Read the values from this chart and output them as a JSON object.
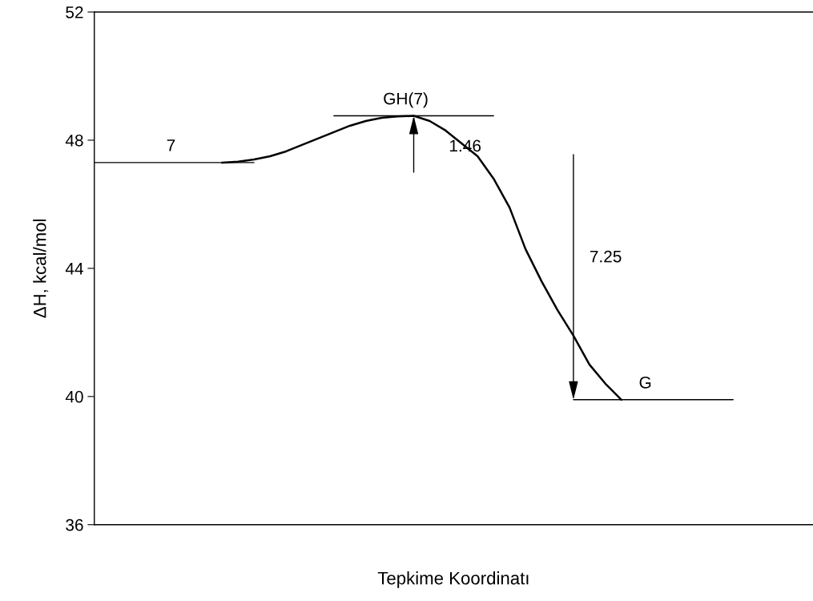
{
  "chart_data": {
    "type": "line",
    "xlabel": "Tepkime Koordinatı",
    "ylabel": "ΔH, kcal/mol",
    "categories": [
      null,
      null,
      null,
      null,
      null,
      null,
      null,
      null,
      null,
      null,
      null,
      null,
      null,
      null,
      null,
      null,
      null,
      null,
      null,
      null,
      null,
      null,
      null,
      null,
      null,
      null,
      null,
      null,
      null,
      null,
      null,
      null,
      null,
      null,
      null,
      null,
      null,
      null,
      null,
      null,
      null,
      null,
      null,
      null,
      null,
      null
    ],
    "series": [
      {
        "color": "#000000",
        "values": [
          null,
          null,
          null,
          null,
          null,
          null,
          null,
          null,
          47.3,
          47.33,
          47.4,
          47.5,
          47.65,
          47.85,
          48.05,
          48.25,
          48.45,
          48.6,
          48.7,
          48.74,
          48.76,
          48.6,
          48.3,
          47.9,
          47.5,
          46.8,
          45.9,
          44.6,
          43.6,
          42.7,
          41.9,
          41.0,
          40.4,
          39.9,
          null,
          null,
          null,
          null,
          null,
          null,
          null,
          null,
          null,
          null,
          null,
          null
        ]
      },
      {
        "name": "7",
        "color": "#000000",
        "values": [
          47.3,
          47.3,
          47.3,
          47.3,
          47.3,
          47.3,
          47.3,
          47.3,
          47.3,
          47.3,
          47.3,
          null,
          null,
          null,
          null,
          null,
          null,
          null,
          null,
          null,
          null,
          null,
          null,
          null,
          null,
          null,
          null,
          null,
          null,
          null,
          null,
          null,
          null,
          null,
          null,
          null,
          null,
          null,
          null,
          null,
          null,
          null,
          null,
          null,
          null,
          null
        ]
      },
      {
        "name": "GH(7)",
        "color": "#000000",
        "values": [
          null,
          null,
          null,
          null,
          null,
          null,
          null,
          null,
          null,
          null,
          null,
          null,
          null,
          null,
          null,
          48.76,
          48.76,
          48.76,
          48.76,
          48.76,
          48.76,
          48.76,
          48.76,
          48.76,
          48.76,
          48.76,
          null,
          null,
          null,
          null,
          null,
          null,
          null,
          null,
          null,
          null,
          null,
          null,
          null,
          null,
          null,
          null,
          null,
          null,
          null,
          null
        ]
      },
      {
        "name": "G",
        "color": "#000000",
        "values": [
          null,
          null,
          null,
          null,
          null,
          null,
          null,
          null,
          null,
          null,
          null,
          null,
          null,
          null,
          null,
          null,
          null,
          null,
          null,
          null,
          null,
          null,
          null,
          null,
          null,
          null,
          null,
          null,
          null,
          null,
          39.9,
          39.9,
          39.9,
          39.9,
          39.9,
          39.9,
          39.9,
          39.9,
          39.9,
          39.9,
          39.9,
          null,
          null,
          null,
          null,
          null
        ]
      }
    ],
    "annotations": [
      "1.46",
      "7.25"
    ],
    "ylim": [
      36,
      52
    ],
    "yticks": [
      36,
      40,
      44,
      48,
      52
    ],
    "tick_labels": "y",
    "grid": false,
    "legend": false,
    "marker": "none",
    "line_style": "solid"
  }
}
